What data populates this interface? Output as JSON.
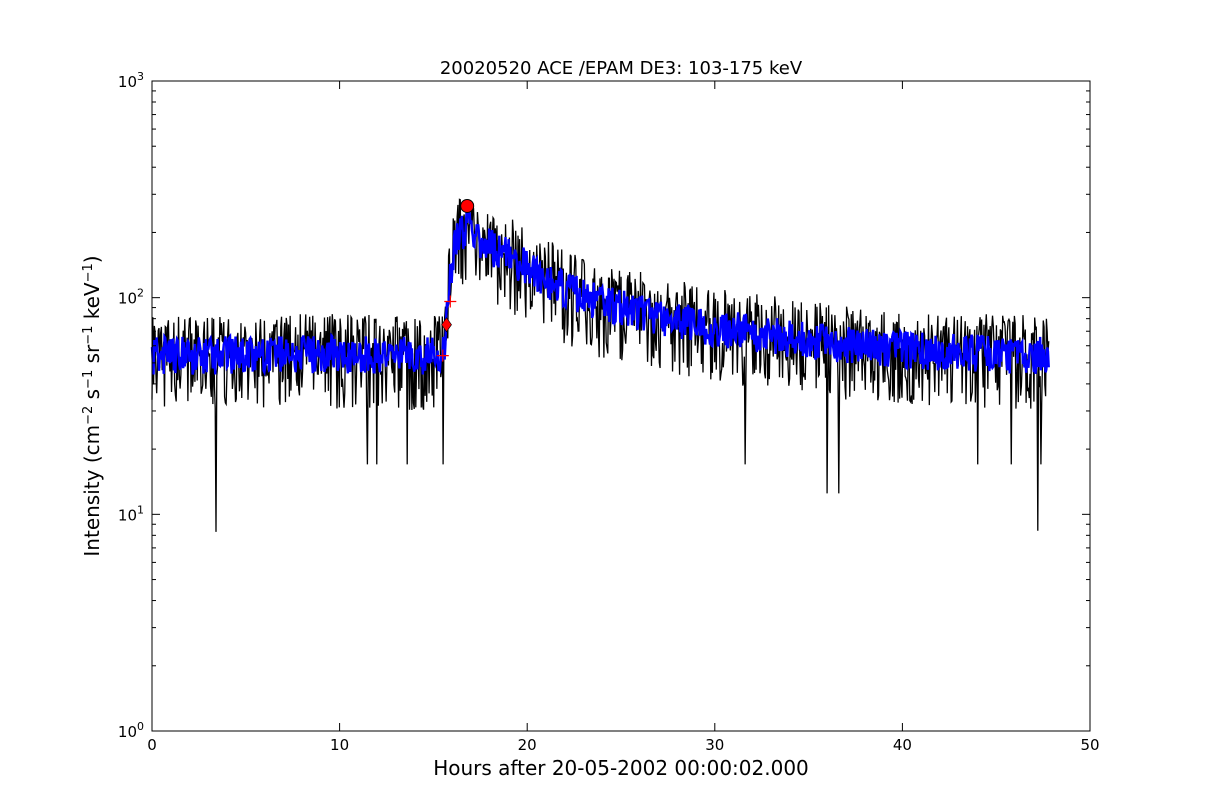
{
  "chart_data": {
    "type": "line",
    "title": "20020520 ACE /EPAM DE3: 103-175 keV",
    "xlabel": "Hours after 20-05-2002 00:00:02.000",
    "ylabel_prefix": "Intensity (cm",
    "ylabel_parts": [
      {
        "t": "Intensity (cm",
        "sup": false
      },
      {
        "t": "−2",
        "sup": true
      },
      {
        "t": " s",
        "sup": false
      },
      {
        "t": "−1",
        "sup": true
      },
      {
        "t": " sr",
        "sup": false
      },
      {
        "t": "−1",
        "sup": true
      },
      {
        "t": " keV",
        "sup": false
      },
      {
        "t": "−1",
        "sup": true
      },
      {
        "t": ")",
        "sup": false
      }
    ],
    "xlim": [
      0,
      50
    ],
    "ylim": [
      1,
      1000
    ],
    "yscale": "log",
    "grid": false,
    "x_ticks": [
      {
        "value": 0,
        "label": "0"
      },
      {
        "value": 10,
        "label": "10"
      },
      {
        "value": 20,
        "label": "20"
      },
      {
        "value": 30,
        "label": "30"
      },
      {
        "value": 40,
        "label": "40"
      },
      {
        "value": 50,
        "label": "50"
      }
    ],
    "y_ticks": [
      {
        "value": 1,
        "base": "10",
        "exp": "0"
      },
      {
        "value": 10,
        "base": "10",
        "exp": "1"
      },
      {
        "value": 100,
        "base": "10",
        "exp": "2"
      },
      {
        "value": 1000,
        "base": "10",
        "exp": "3"
      }
    ],
    "series": [
      {
        "color": "#000000",
        "role": "raw intensity",
        "profile": [
          [
            0.0,
            55
          ],
          [
            3.0,
            55
          ],
          [
            6.0,
            56
          ],
          [
            10.0,
            56
          ],
          [
            13.0,
            55
          ],
          [
            15.6,
            55
          ],
          [
            15.8,
            110
          ],
          [
            16.2,
            190
          ],
          [
            16.8,
            215
          ],
          [
            17.5,
            190
          ],
          [
            18.5,
            165
          ],
          [
            20.0,
            140
          ],
          [
            22.0,
            110
          ],
          [
            24.0,
            95
          ],
          [
            26.0,
            88
          ],
          [
            28.0,
            80
          ],
          [
            30.0,
            74
          ],
          [
            34.0,
            66
          ],
          [
            38.0,
            60
          ],
          [
            42.0,
            57
          ],
          [
            47.8,
            55
          ]
        ],
        "spread_factor": [
          0.55,
          1.5
        ],
        "outliers": [
          [
            3.4,
            8.3
          ],
          [
            12.0,
            17
          ],
          [
            11.5,
            17
          ],
          [
            13.6,
            17
          ],
          [
            15.5,
            17
          ],
          [
            31.6,
            17
          ],
          [
            36.0,
            12.5
          ],
          [
            36.6,
            12.5
          ],
          [
            44.0,
            17
          ],
          [
            45.8,
            17
          ],
          [
            47.2,
            8.4
          ],
          [
            47.4,
            17
          ]
        ]
      },
      {
        "color": "#0000ff",
        "role": "smoothed intensity",
        "spread_factor": [
          0.8,
          1.2
        ]
      }
    ],
    "markers": [
      {
        "shape": "circle",
        "color": "#ff0000",
        "x": 16.8,
        "y": 265
      },
      {
        "shape": "diamond",
        "color": "#ff0000",
        "x": 15.7,
        "y": 75
      },
      {
        "shape": "plus",
        "color": "#ff0000",
        "x": 15.9,
        "y": 96
      },
      {
        "shape": "plus",
        "color": "#ff0000",
        "x": 15.5,
        "y": 54
      }
    ],
    "n_samples": 1150
  }
}
